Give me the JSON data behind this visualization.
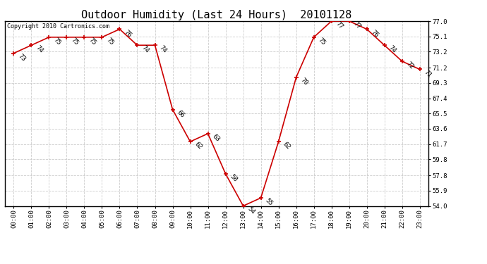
{
  "title": "Outdoor Humidity (Last 24 Hours)  20101128",
  "copyright": "Copyright 2010 Cartronics.com",
  "hours": [
    0,
    1,
    2,
    3,
    4,
    5,
    6,
    7,
    8,
    9,
    10,
    11,
    12,
    13,
    14,
    15,
    16,
    17,
    18,
    19,
    20,
    21,
    22,
    23
  ],
  "values": [
    73,
    74,
    75,
    75,
    75,
    75,
    76,
    74,
    74,
    66,
    62,
    63,
    58,
    54,
    55,
    62,
    70,
    75,
    77,
    77,
    76,
    74,
    72,
    71
  ],
  "yticks": [
    54.0,
    55.9,
    57.8,
    59.8,
    61.7,
    63.6,
    65.5,
    67.4,
    69.3,
    71.2,
    73.2,
    75.1,
    77.0
  ],
  "xtick_labels": [
    "00:00",
    "01:00",
    "02:00",
    "03:00",
    "04:00",
    "05:00",
    "06:00",
    "07:00",
    "08:00",
    "09:00",
    "10:00",
    "11:00",
    "12:00",
    "13:00",
    "14:00",
    "15:00",
    "16:00",
    "17:00",
    "18:00",
    "19:00",
    "20:00",
    "21:00",
    "22:00",
    "23:00"
  ],
  "line_color": "#cc0000",
  "marker_color": "#cc0000",
  "background_color": "#ffffff",
  "grid_color": "#cccccc",
  "title_fontsize": 11,
  "label_fontsize": 6.5,
  "annotation_fontsize": 6.5,
  "copyright_fontsize": 6,
  "ymin": 54.0,
  "ymax": 77.0
}
